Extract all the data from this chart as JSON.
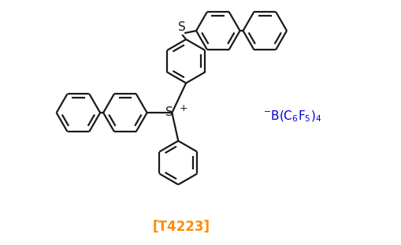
{
  "background_color": "#ffffff",
  "line_color": "#1a1a1a",
  "line_width": 1.6,
  "label_T4223": "[T4223]",
  "label_T4223_color": "#ff8c00",
  "label_T4223_fontsize": 12,
  "label_anion_color": "#0000dd",
  "label_anion_fontsize": 11,
  "figsize": [
    5.1,
    3.11
  ],
  "dpi": 100,
  "S_plus_fontsize": 11,
  "S_fontsize": 11
}
